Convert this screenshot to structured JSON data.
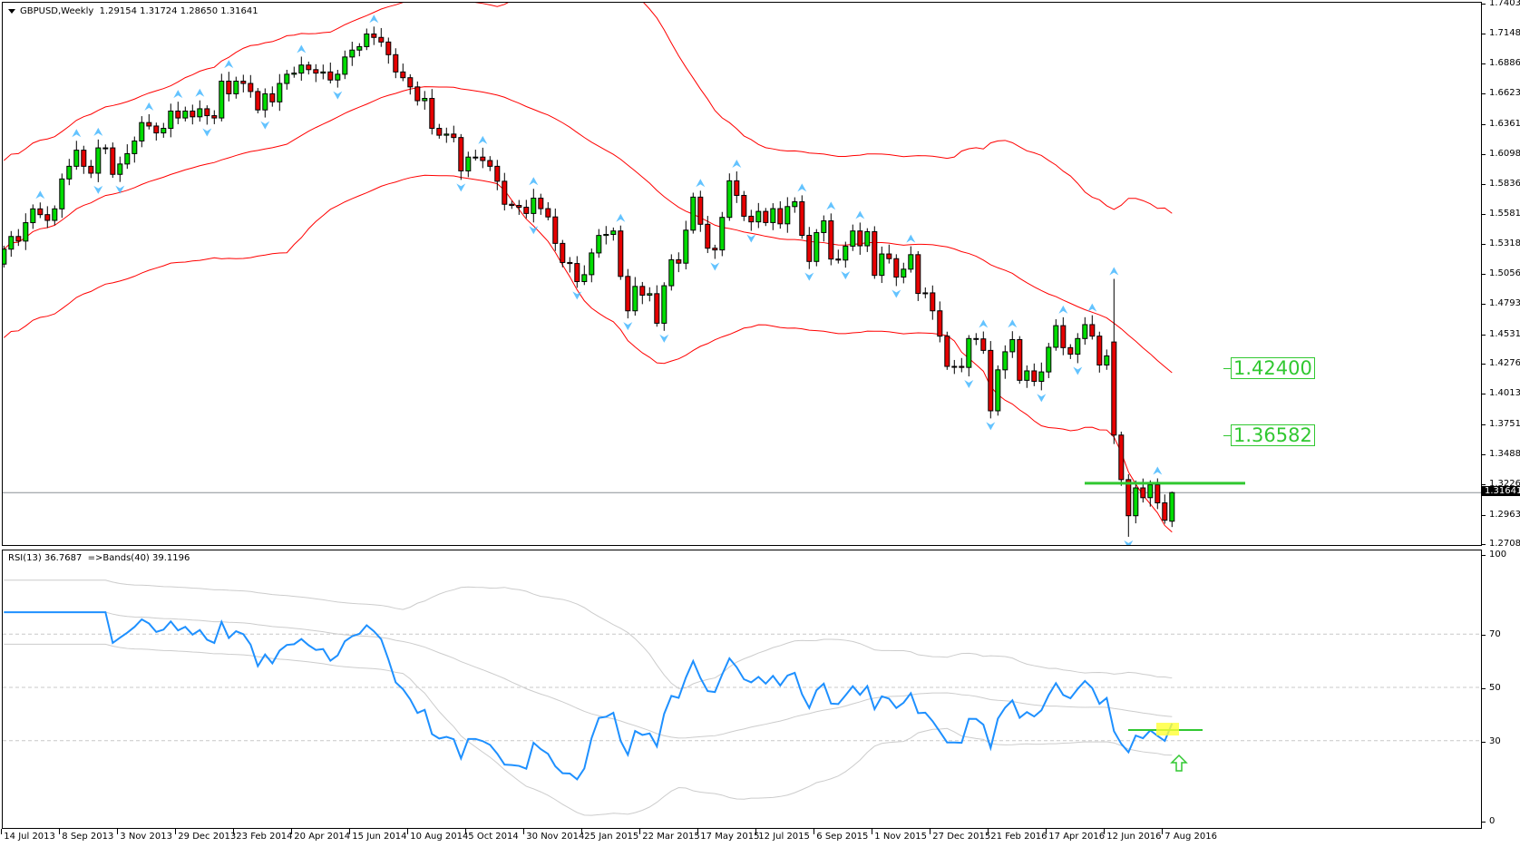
{
  "header": {
    "symbol_timeframe": "GBPUSD,Weekly",
    "ohlc_text": "1.29154 1.31724 1.28650 1.31641"
  },
  "rsi_header": {
    "text": "RSI(13) 36.7687  =>Bands(40) 39.1196"
  },
  "colors": {
    "bull": "#00dc00",
    "bear": "#e60000",
    "bands": "#ff0000",
    "rsi": "#1e90ff",
    "rsi_bands": "#cccccc",
    "fractal": "#3cb4ff",
    "level_line": "#31c831",
    "highlight": "#ffff33"
  },
  "chart_data": [
    {
      "type": "candlestick",
      "title": "GBPUSD,Weekly",
      "ylim": [
        1.27085,
        1.74035
      ],
      "y_ticks": [
        "1.74035",
        "1.71485",
        "1.68860",
        "1.66235",
        "1.63610",
        "1.60985",
        "1.58360",
        "1.55810",
        "1.53185",
        "1.50560",
        "1.47935",
        "1.45310",
        "1.42760",
        "1.40135",
        "1.37510",
        "1.34885",
        "1.32260",
        "1.29635",
        "1.27085"
      ],
      "x_ticks": [
        {
          "index": 0,
          "label": "14 Jul 2013"
        },
        {
          "index": 8,
          "label": "8 Sep 2013"
        },
        {
          "index": 16,
          "label": "3 Nov 2013"
        },
        {
          "index": 24,
          "label": "29 Dec 2013"
        },
        {
          "index": 32,
          "label": "23 Feb 2014"
        },
        {
          "index": 40,
          "label": "20 Apr 2014"
        },
        {
          "index": 48,
          "label": "15 Jun 2014"
        },
        {
          "index": 56,
          "label": "10 Aug 2014"
        },
        {
          "index": 64,
          "label": "5 Oct 2014"
        },
        {
          "index": 72,
          "label": "30 Nov 2014"
        },
        {
          "index": 80,
          "label": "25 Jan 2015"
        },
        {
          "index": 88,
          "label": "22 Mar 2015"
        },
        {
          "index": 96,
          "label": "17 May 2015"
        },
        {
          "index": 104,
          "label": "12 Jul 2015"
        },
        {
          "index": 112,
          "label": "6 Sep 2015"
        },
        {
          "index": 120,
          "label": "1 Nov 2015"
        },
        {
          "index": 128,
          "label": "27 Dec 2015"
        },
        {
          "index": 136,
          "label": "21 Feb 2016"
        },
        {
          "index": 144,
          "label": "17 Apr 2016"
        },
        {
          "index": 152,
          "label": "12 Jun 2016"
        },
        {
          "index": 160,
          "label": "7 Aug 2016"
        }
      ],
      "first_open": 1.515,
      "closes": [
        1.528,
        1.539,
        1.535,
        1.551,
        1.563,
        1.558,
        1.553,
        1.563,
        1.589,
        1.6,
        1.614,
        1.6,
        1.594,
        1.616,
        1.616,
        1.593,
        1.602,
        1.611,
        1.622,
        1.638,
        1.635,
        1.629,
        1.633,
        1.648,
        1.642,
        1.648,
        1.643,
        1.65,
        1.644,
        1.642,
        1.674,
        1.663,
        1.674,
        1.672,
        1.665,
        1.649,
        1.663,
        1.656,
        1.672,
        1.68,
        1.681,
        1.688,
        1.684,
        1.681,
        1.682,
        1.675,
        1.68,
        1.695,
        1.701,
        1.704,
        1.715,
        1.712,
        1.708,
        1.697,
        1.682,
        1.677,
        1.669,
        1.657,
        1.659,
        1.633,
        1.627,
        1.628,
        1.625,
        1.596,
        1.608,
        1.608,
        1.605,
        1.6,
        1.587,
        1.567,
        1.566,
        1.5644,
        1.559,
        1.5723,
        1.5632,
        1.556,
        1.533,
        1.5164,
        1.5155,
        1.4998,
        1.5058,
        1.5247,
        1.5399,
        1.5408,
        1.5438,
        1.5043,
        1.4744,
        1.4956,
        1.488,
        1.4893,
        1.4636,
        1.4962,
        1.5188,
        1.5158,
        1.5445,
        1.5732,
        1.5496,
        1.5288,
        1.5273,
        1.5556,
        1.5874,
        1.5747,
        1.5566,
        1.5517,
        1.5608,
        1.5511,
        1.5632,
        1.55,
        1.565,
        1.5692,
        1.54,
        1.5173,
        1.5424,
        1.5526,
        1.5194,
        1.5185,
        1.5306,
        1.5438,
        1.5309,
        1.5432,
        1.5052,
        1.5238,
        1.5197,
        1.5037,
        1.5106,
        1.5232,
        1.4895,
        1.49,
        1.4744,
        1.4524,
        1.4261,
        1.4261,
        1.4252,
        1.4503,
        1.45,
        1.44,
        1.3875,
        1.4231,
        1.4388,
        1.4494,
        1.414,
        1.4222,
        1.4131,
        1.4213,
        1.4427,
        1.4615,
        1.4424,
        1.4367,
        1.4503,
        1.4624,
        1.4524,
        1.4273,
        1.4352,
        1.3664,
        1.3277,
        1.2963,
        1.3205,
        1.312,
        1.3232,
        1.3075,
        1.2924,
        1.31641
      ],
      "ohlc_overrides": [
        {
          "index": 153,
          "open": 1.4473,
          "high": 1.5022
        },
        {
          "index": 155,
          "low": 1.278
        },
        {
          "index": 161,
          "open": 1.29154,
          "high": 1.31724,
          "low": 1.2865,
          "close": 1.31641
        }
      ],
      "current_price": "1.31641",
      "indicators": {
        "bands": "Bollinger-style envelope (red)",
        "fractals": "up/down arrows (light blue)"
      },
      "horizontal_line": 1.3245,
      "price_labels": [
        "1.42400",
        "1.36582"
      ]
    },
    {
      "type": "line",
      "title": "RSI(13) 36.7687  =>Bands(40) 39.1196",
      "ylim": [
        0,
        100
      ],
      "y_ticks": [
        "100",
        "70",
        "50",
        "30",
        "0"
      ],
      "levels": [
        70,
        50,
        30
      ],
      "rsi_period": 13,
      "bands_period": 40,
      "horizontal_line": 34
    }
  ]
}
